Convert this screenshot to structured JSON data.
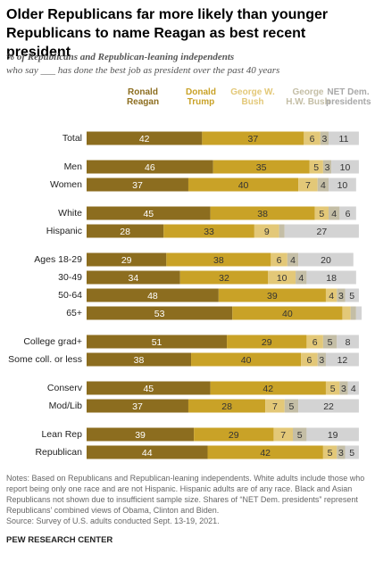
{
  "chart_data": {
    "type": "stacked-bar",
    "title": "Older Republicans far more likely than younger Republicans to name Reagan as best recent president",
    "subtitle": [
      "% of Republicans and Republican-leaning independents",
      "who say ___ has done the best job as president over the past 40 years"
    ],
    "categories": [
      "Total",
      "Men",
      "Women",
      "White",
      "Hispanic",
      "Ages 18-29",
      "30-49",
      "50-64",
      "65+",
      "College grad+",
      "Some coll. or less",
      "Conserv",
      "Mod/Lib",
      "Lean Rep",
      "Republican"
    ],
    "series": [
      {
        "name": "Ronald Reagan",
        "color": "#8c6d1f",
        "values": [
          42,
          46,
          37,
          45,
          28,
          29,
          34,
          48,
          53,
          51,
          38,
          45,
          37,
          39,
          44
        ]
      },
      {
        "name": "Donald Trump",
        "color": "#c9a227",
        "values": [
          37,
          35,
          40,
          38,
          33,
          38,
          32,
          39,
          40,
          29,
          40,
          42,
          28,
          29,
          42
        ]
      },
      {
        "name": "George W. Bush",
        "color": "#e3c878",
        "values": [
          6,
          5,
          7,
          5,
          9,
          6,
          10,
          4,
          3,
          6,
          6,
          5,
          7,
          7,
          5
        ],
        "value_labels": [
          "6",
          "5",
          "7",
          "5",
          "9",
          "6",
          "10",
          "4",
          null,
          "6",
          "6",
          "5",
          "7",
          "7",
          "5"
        ]
      },
      {
        "name": "George H.W. Bush",
        "color": "#c4bea6",
        "values": [
          3,
          3,
          4,
          4,
          2,
          4,
          4,
          3,
          2,
          5,
          3,
          3,
          5,
          5,
          3
        ],
        "value_labels": [
          "3",
          "3",
          "4",
          "4",
          null,
          "4",
          "4",
          "3",
          null,
          "5",
          "3",
          "3",
          "5",
          "5",
          "3"
        ]
      },
      {
        "name": "NET Dem. presidents",
        "color": "#d3d3d3",
        "values": [
          11,
          10,
          10,
          6,
          27,
          20,
          18,
          5,
          2,
          8,
          12,
          4,
          22,
          19,
          5
        ],
        "value_labels": [
          "11",
          "10",
          "10",
          "6",
          "27",
          "20",
          "18",
          "5",
          null,
          "8",
          "12",
          "4",
          "22",
          "19",
          "5"
        ]
      }
    ],
    "xlim": [
      0,
      100
    ],
    "notes": "Notes: Based on Republicans and Republican-leaning independents. White adults include those who report being only one race and are not Hispanic. Hispanic adults are of any race. Black and Asian Republicans not shown due to insufficient sample size. Shares of “NET Dem. presidents” represent Republicans’ combined views of Obama, Clinton and Biden.",
    "source": "Source: Survey of U.S. adults conducted Sept. 13-19, 2021.",
    "credit": "PEW RESEARCH CENTER"
  }
}
